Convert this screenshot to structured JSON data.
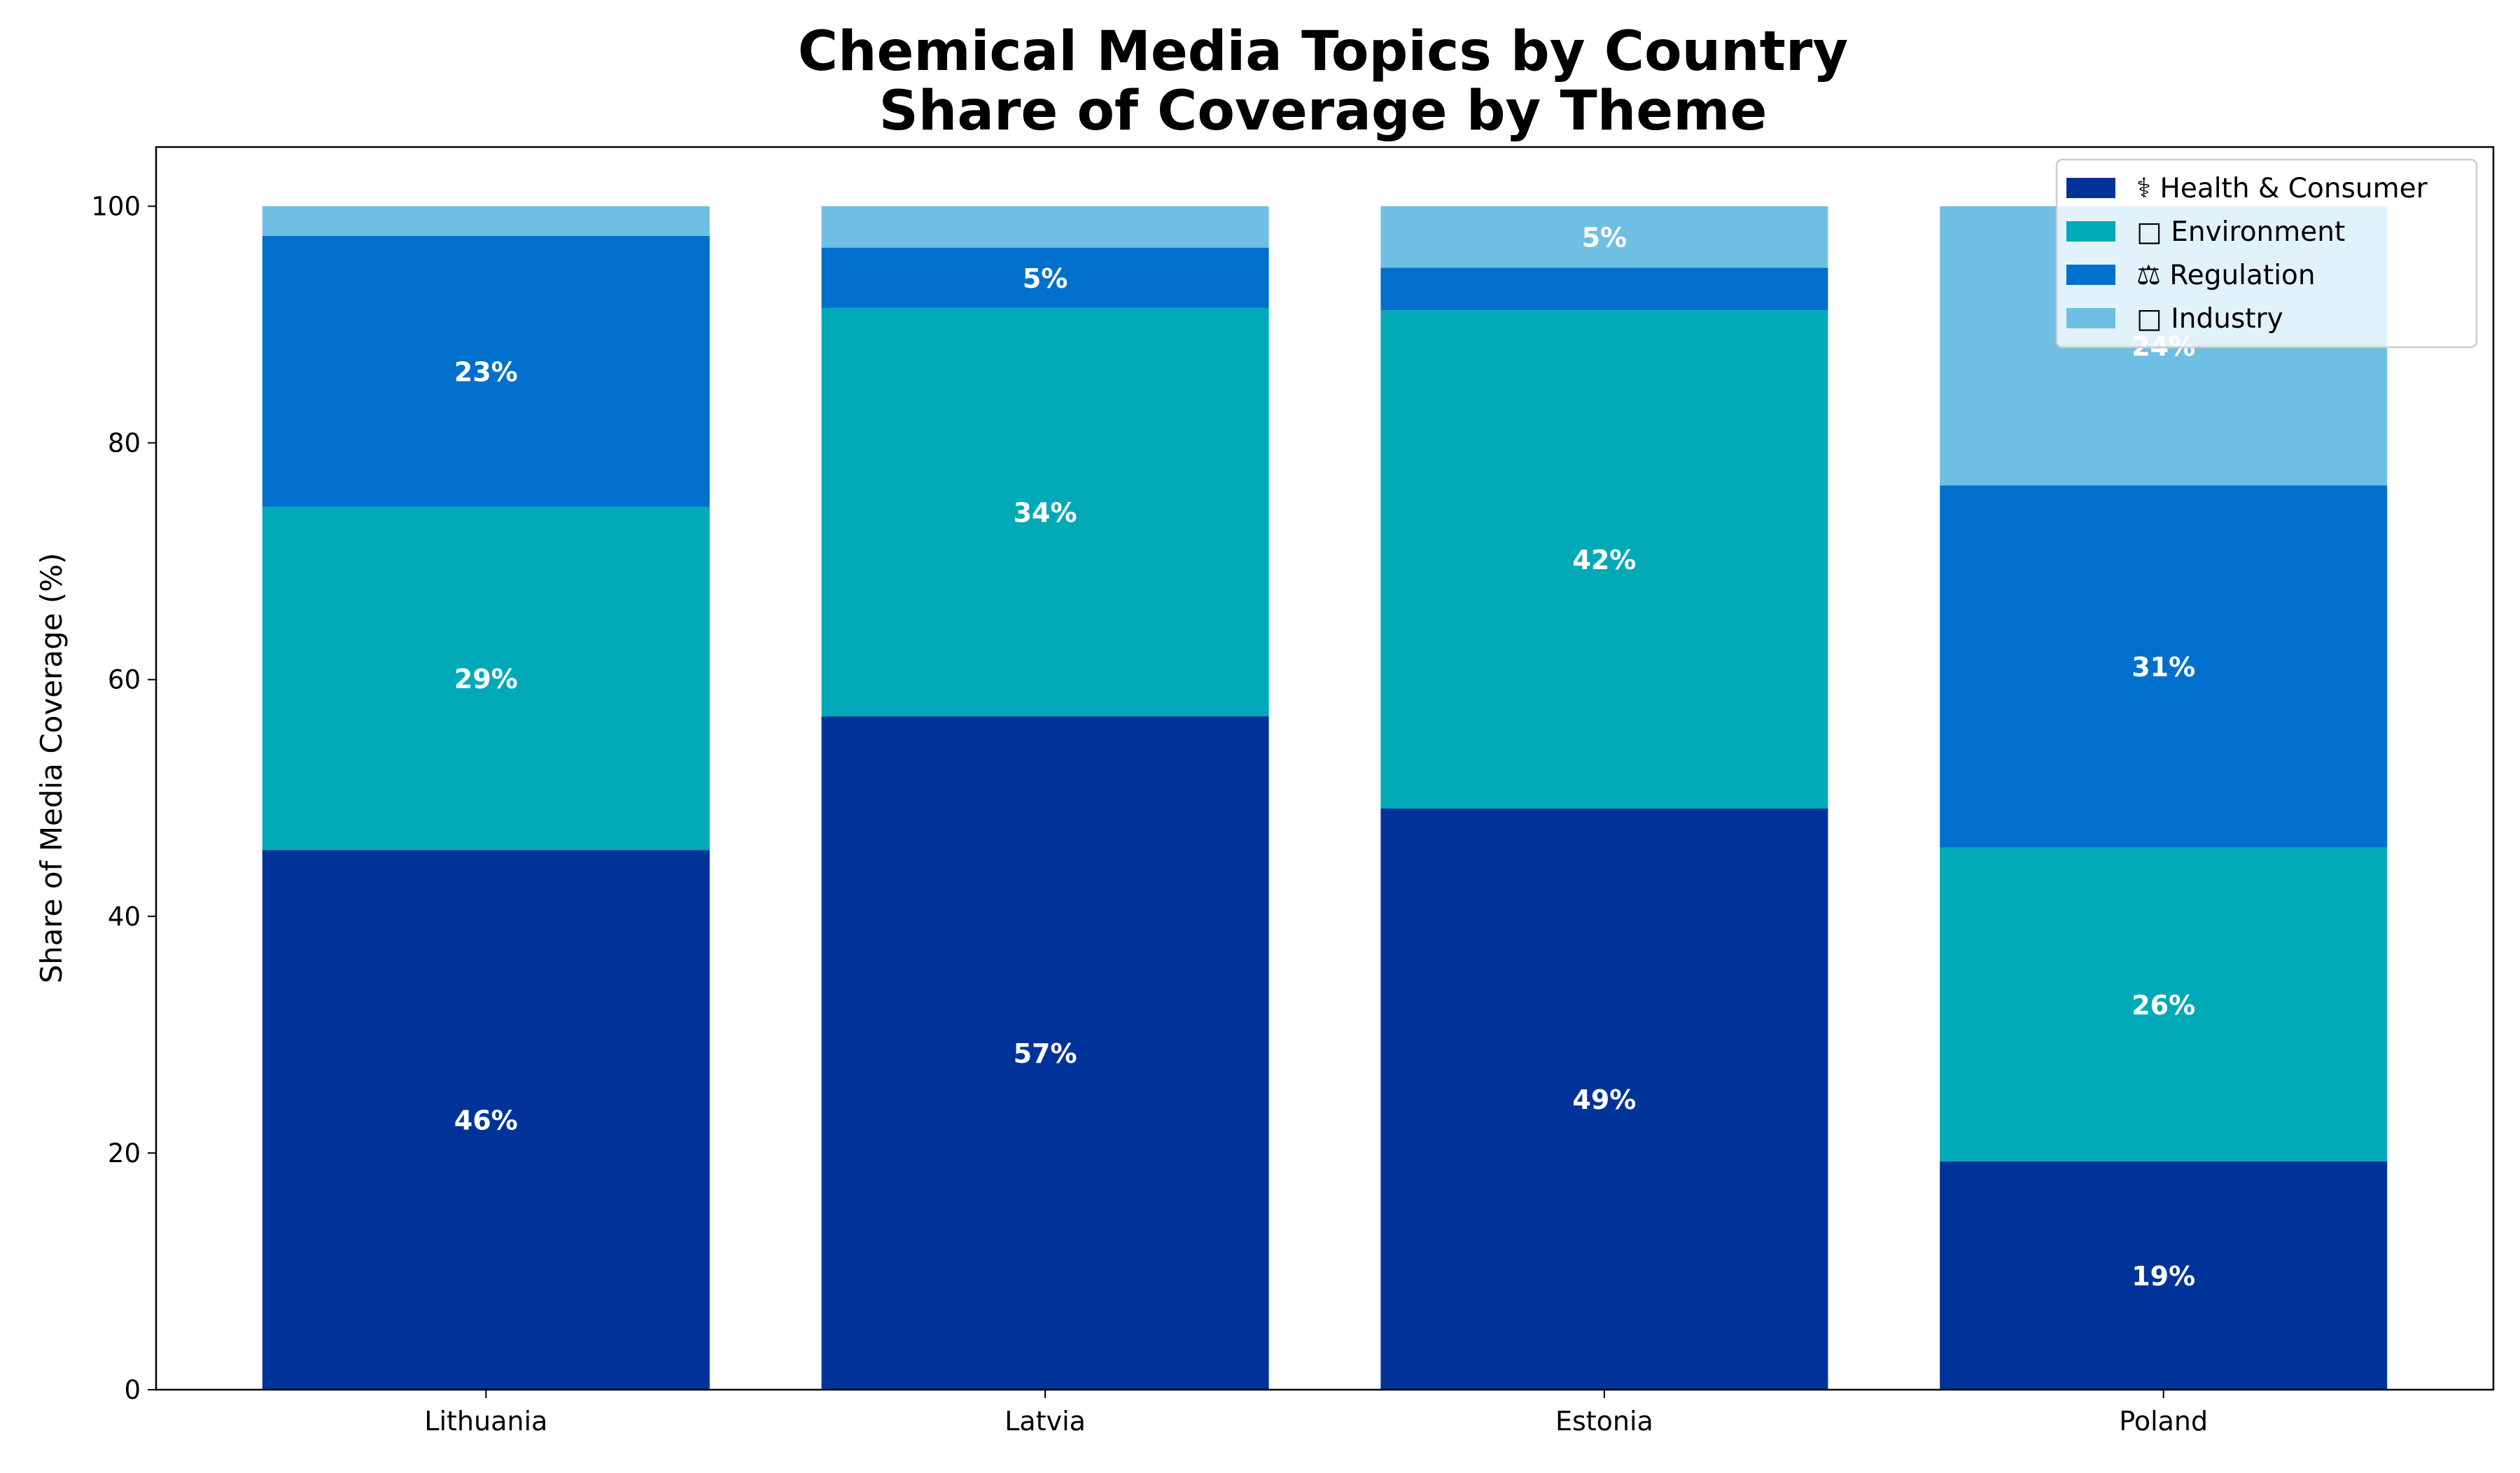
{
  "chart_data": {
    "type": "bar",
    "stacked": true,
    "title": "Chemical Media Topics by Country",
    "subtitle": "Share of Coverage by Theme",
    "xlabel": "",
    "ylabel": "Share of Media Coverage (%)",
    "ylim": [
      0,
      105
    ],
    "yticks": [
      "0",
      "20",
      "40",
      "60",
      "80",
      "100"
    ],
    "categories": [
      "Lithuania",
      "Latvia",
      "Estonia",
      "Poland"
    ],
    "series": [
      {
        "name": "⚕ Health & Consumer",
        "color": "#003399",
        "values": [
          45.6,
          56.9,
          49.1,
          19.3
        ],
        "labels": [
          "46%",
          "57%",
          "49%",
          "19%"
        ]
      },
      {
        "name": "□ Environment",
        "color": "#00A9B8",
        "values": [
          29.0,
          34.5,
          42.1,
          26.5
        ],
        "labels": [
          "29%",
          "34%",
          "42%",
          "26%"
        ]
      },
      {
        "name": "⚖ Regulation",
        "color": "#0070CC",
        "values": [
          22.9,
          5.1,
          3.6,
          30.6
        ],
        "labels": [
          "23%",
          "5%",
          "",
          "31%"
        ]
      },
      {
        "name": "□ Industry",
        "color": "#6FBFE4",
        "values": [
          2.5,
          3.5,
          5.2,
          23.6
        ],
        "labels": [
          "",
          "",
          "5%",
          "24%"
        ]
      }
    ],
    "legend_position": "top-right",
    "grid": false
  }
}
